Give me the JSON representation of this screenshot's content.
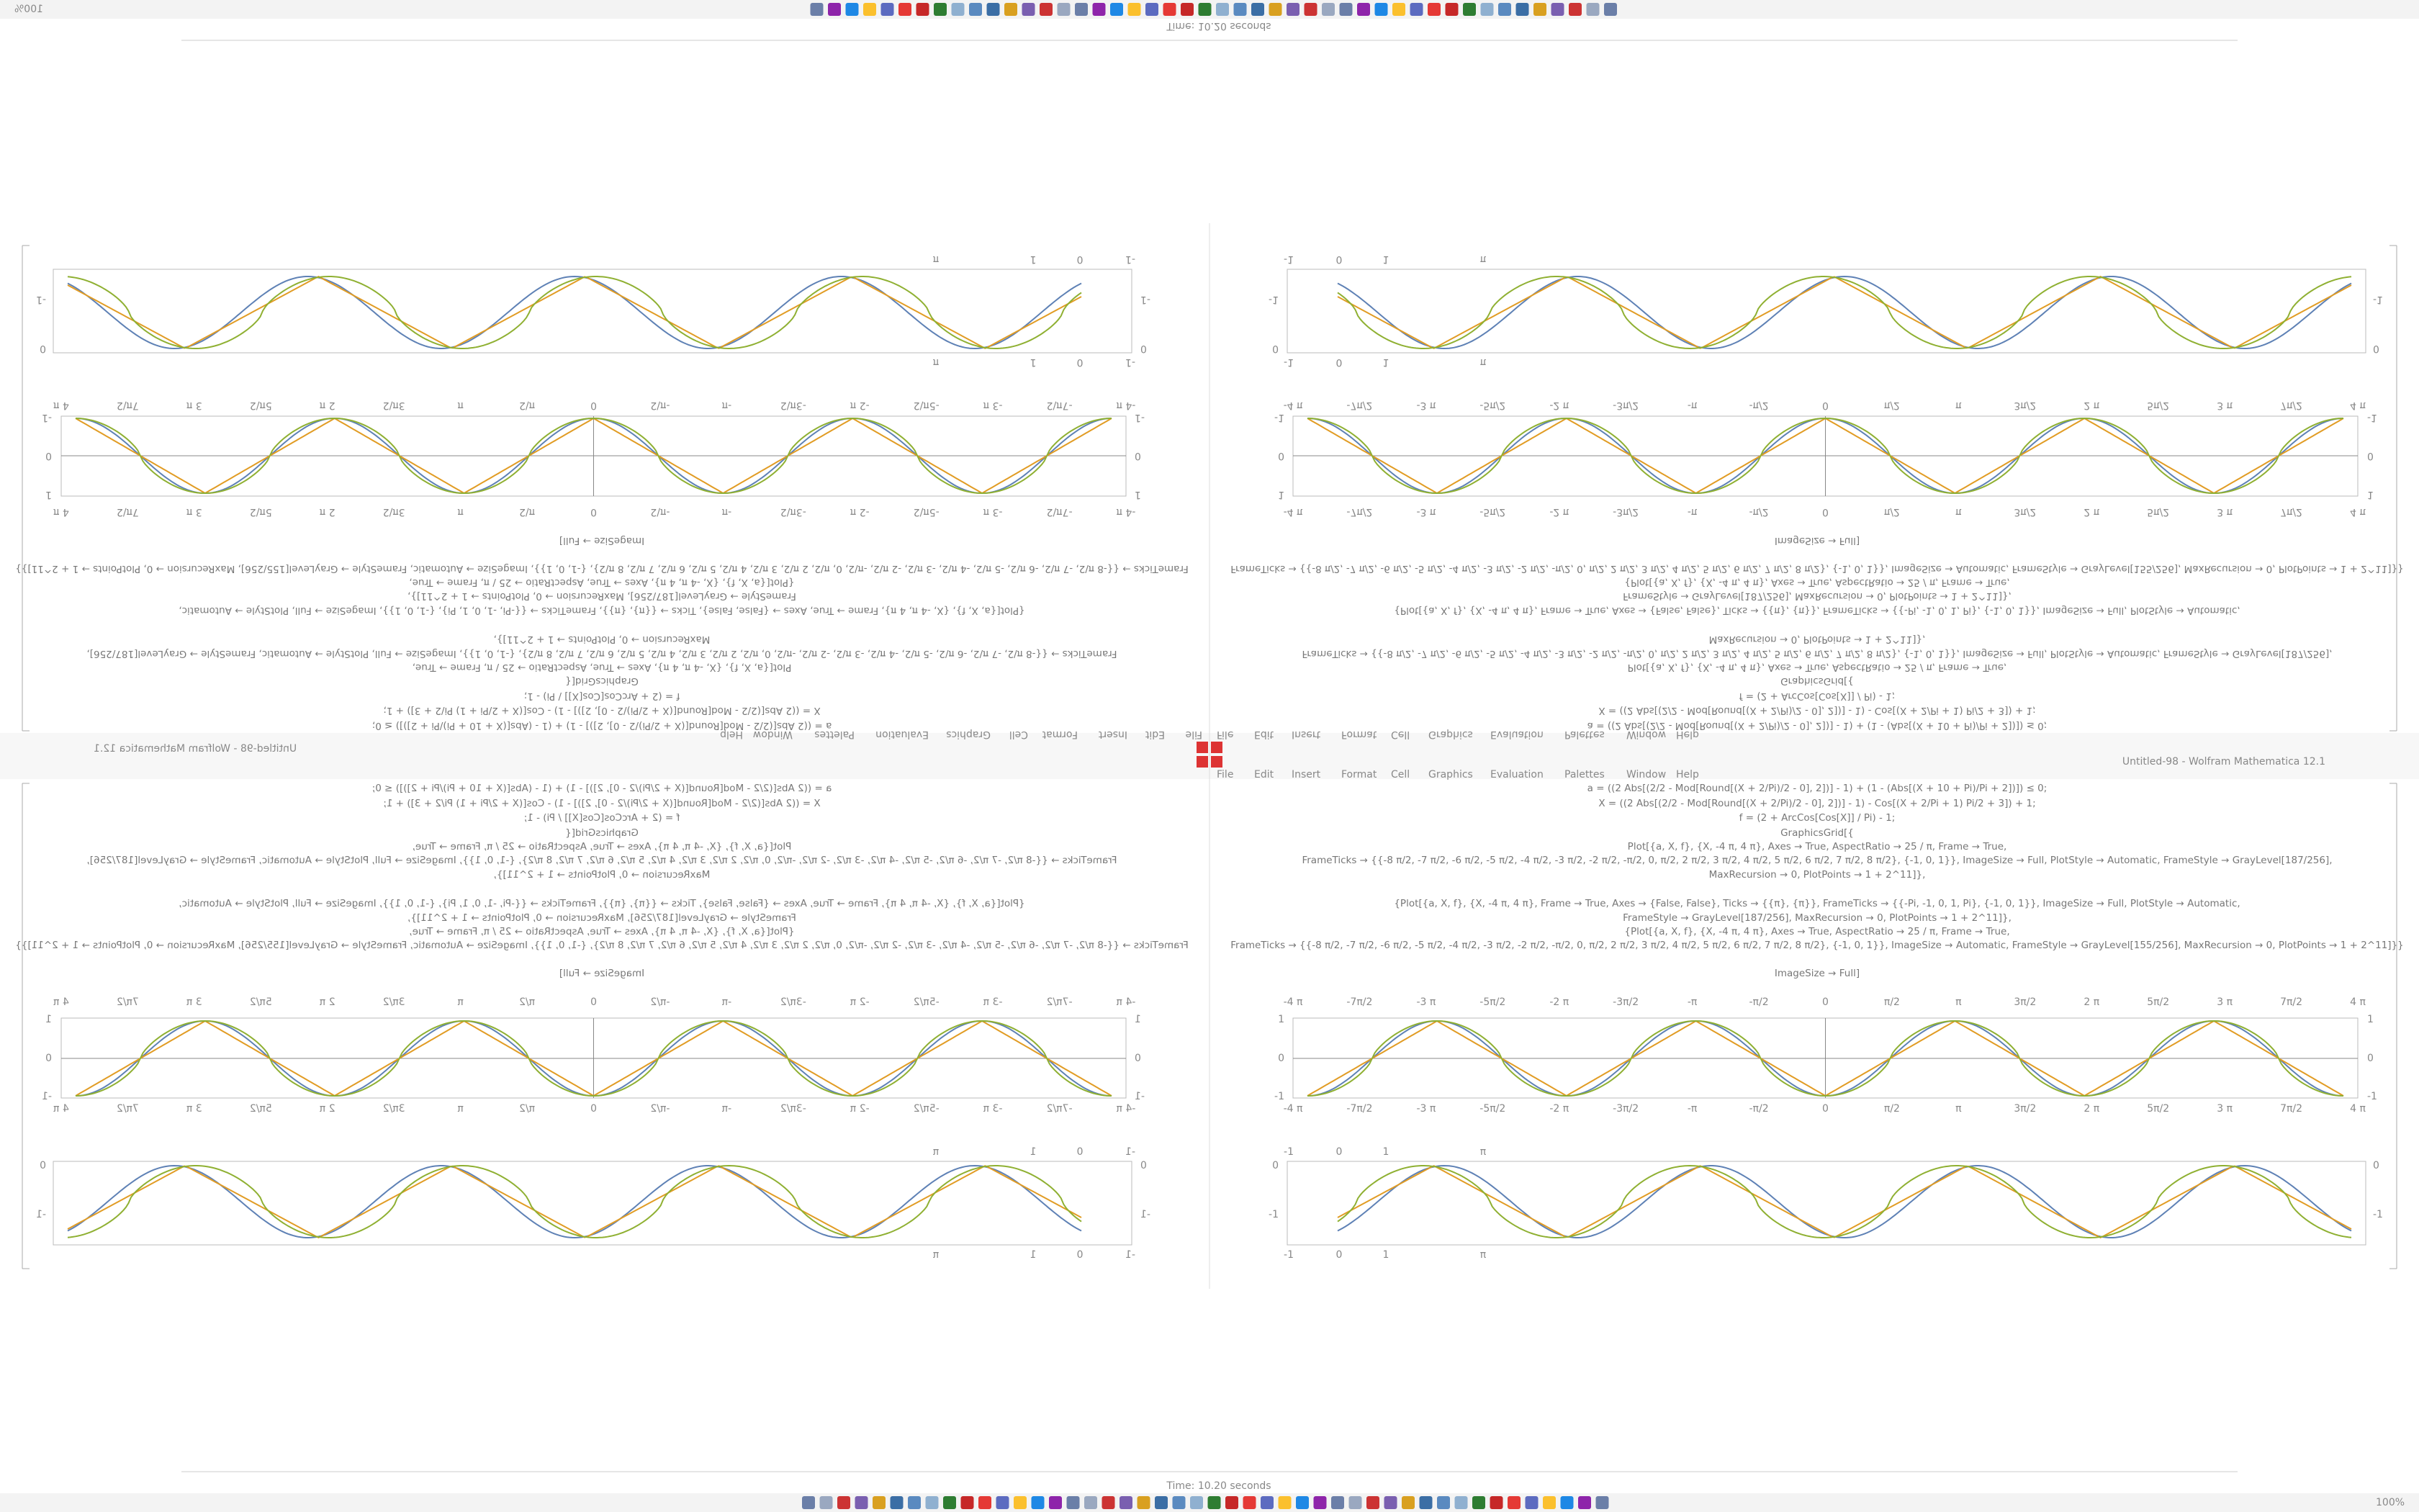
{
  "window": {
    "title": "Untitled-98 - Wolfram Mathematica 12.1",
    "status": "Time: 10.20 seconds",
    "zoom": "100%"
  },
  "menu": [
    "File",
    "Edit",
    "Insert",
    "Format",
    "Cell",
    "Graphics",
    "Evaluation",
    "Palettes",
    "Window",
    "Help"
  ],
  "notebook": {
    "code_lines": [
      "a = ((2 Abs[(2/2 - Mod[Round[(X + 2/Pi)/2 - 0], 2])] - 1) + (1 - (Abs[(X + 10 + Pi)/Pi + 2])]) ≤ 0;",
      "X = ((2 Abs[(2/2 - Mod[Round[(X + 2/Pi)/2 - 0], 2])] - 1) - Cos[(X + 2/Pi + 1) Pi/2 + 3]) + 1;",
      "f = (2 + ArcCos[Cos[X]] / Pi) - 1;",
      "GraphicsGrid[{",
      "Plot[{a, X, f}, {X, -4 π, 4 π}, Axes → True, AspectRatio → 25 / π, Frame → True,",
      "FrameTicks → {{-8 π/2, -7 π/2, -6 π/2, -5 π/2, -4 π/2, -3 π/2, -2 π/2, -π/2, 0, π/2, 2 π/2, 3 π/2, 4 π/2, 5 π/2, 6 π/2, 7 π/2, 8 π/2}, {-1, 0, 1}}, ImageSize → Full, PlotStyle → Automatic, FrameStyle → GrayLevel[187/256],",
      "MaxRecursion → 0, PlotPoints → 1 + 2^11]},",
      "{Plot[{a, X, f}, {X, -4 π, 4 π}, Frame → True, Axes → {False, False}, Ticks → {{π}, {π}}, FrameTicks → {{-Pi, -1, 0, 1, Pi}, {-1, 0, 1}}, ImageSize → Full, PlotStyle → Automatic,",
      "FrameStyle → GrayLevel[187/256], MaxRecursion → 0, PlotPoints → 1 + 2^11]},",
      "{Plot[{a, X, f}, {X, -4 π, 4 π}, Axes → True, AspectRatio → 25 / π, Frame → True,",
      "FrameTicks → {{-8 π/2, -7 π/2, -6 π/2, -5 π/2, -4 π/2, -3 π/2, -2 π/2, -π/2, 0, π/2, 2 π/2, 3 π/2, 4 π/2, 5 π/2, 6 π/2, 7 π/2, 8 π/2}, {-1, 0, 1}}, ImageSize → Automatic, FrameStyle → GrayLevel[155/256], MaxRecursion → 0, PlotPoints → 1 + 2^11]}}",
      "ImageSize → Full]"
    ],
    "plot1": {
      "xticks": [
        "-4 π",
        "-7π/2",
        "-3 π",
        "-5π/2",
        "-2 π",
        "-3π/2",
        "-π",
        "-π/2",
        "0",
        "π/2",
        "π",
        "3π/2",
        "2 π",
        "5π/2",
        "3 π",
        "7π/2",
        "4 π"
      ],
      "yticks": [
        "1",
        "0",
        "-1"
      ]
    },
    "plot2": {
      "xticks": [
        "-1",
        "0",
        "1",
        "π"
      ],
      "yticks": [
        "0",
        "-1"
      ]
    }
  }
}
